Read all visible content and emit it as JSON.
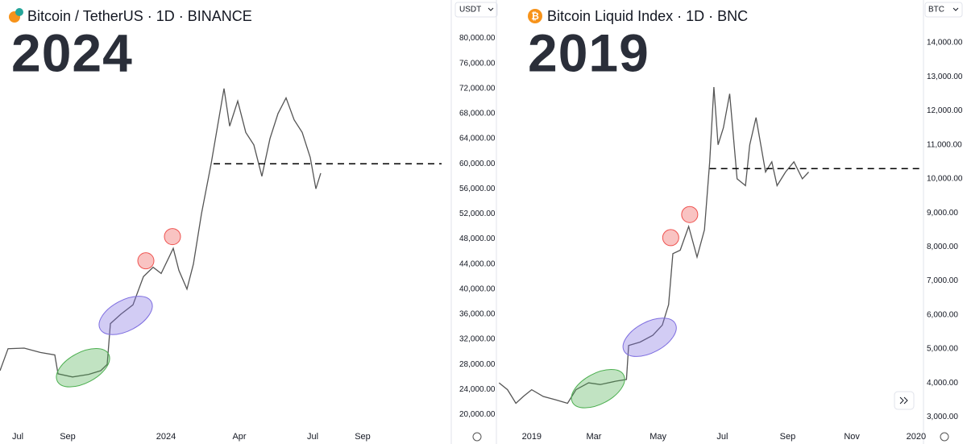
{
  "chart_data": [
    {
      "type": "line",
      "title": "Bitcoin / TetherUS · 1D · BINANCE",
      "annotation": "2024",
      "currency": "USDT",
      "color": "#555555",
      "grid": false,
      "x": [
        -22,
        -12,
        8,
        28,
        46,
        50,
        68,
        88,
        103,
        111,
        115,
        128,
        143,
        156,
        168,
        178,
        193,
        200,
        210,
        218,
        228,
        240,
        248,
        256,
        263,
        273,
        283,
        293,
        303,
        313,
        323,
        333,
        343,
        353,
        363,
        370,
        376
      ],
      "values": [
        27000,
        30500,
        30600,
        29900,
        29500,
        26500,
        26000,
        26400,
        27000,
        28000,
        34500,
        36000,
        37500,
        42000,
        43500,
        42500,
        46500,
        43000,
        40000,
        44000,
        52000,
        60000,
        66000,
        72000,
        66000,
        70000,
        65000,
        63000,
        58000,
        64000,
        68000,
        70500,
        67000,
        65000,
        61000,
        56000,
        58500
      ],
      "xlim": [
        -22,
        526
      ],
      "ylim": [
        18000,
        82000
      ],
      "xticks": [
        {
          "value": 0,
          "label": "Jul"
        },
        {
          "value": 62,
          "label": "Sep"
        },
        {
          "value": 184,
          "label": "2024"
        },
        {
          "value": 275,
          "label": "Apr"
        },
        {
          "value": 366,
          "label": "Jul"
        },
        {
          "value": 428,
          "label": "Sep"
        }
      ],
      "yticks": [
        {
          "value": 20000,
          "label": "20,000.00"
        },
        {
          "value": 24000,
          "label": "24,000.00"
        },
        {
          "value": 28000,
          "label": "28,000.00"
        },
        {
          "value": 32000,
          "label": "32,000.00"
        },
        {
          "value": 36000,
          "label": "36,000.00"
        },
        {
          "value": 40000,
          "label": "40,000.00"
        },
        {
          "value": 44000,
          "label": "44,000.00"
        },
        {
          "value": 48000,
          "label": "48,000.00"
        },
        {
          "value": 52000,
          "label": "52,000.00"
        },
        {
          "value": 56000,
          "label": "56,000.00"
        },
        {
          "value": 60000,
          "label": "60,000.00"
        },
        {
          "value": 64000,
          "label": "64,000.00"
        },
        {
          "value": 68000,
          "label": "68,000.00"
        },
        {
          "value": 72000,
          "label": "72,000.00"
        },
        {
          "value": 76000,
          "label": "76,000.00"
        },
        {
          "value": 80000,
          "label": "80,000.00"
        }
      ],
      "level": {
        "value": 60000,
        "x_start": 243
      },
      "highlights": [
        {
          "shape": "ellipse",
          "x": 81,
          "y": 27470,
          "color": "#4caf50"
        },
        {
          "shape": "ellipse",
          "x": 134,
          "y": 35810,
          "color": "#7e6ee0"
        },
        {
          "shape": "circle",
          "x": 159,
          "y": 44520,
          "color": "#ef5350"
        },
        {
          "shape": "circle",
          "x": 192,
          "y": 48380,
          "color": "#ef5350"
        }
      ]
    },
    {
      "type": "line",
      "title": "Bitcoin Liquid Index · 1D · BNC",
      "annotation": "2019",
      "currency": "BTC",
      "color": "#555555",
      "grid": false,
      "x": [
        -31,
        -23,
        -15,
        -8,
        0,
        11,
        23,
        34,
        42,
        54,
        65,
        80,
        90,
        92,
        103,
        115,
        124,
        130,
        134,
        141,
        149,
        157,
        164,
        169,
        173,
        177,
        182,
        188,
        195,
        203,
        207,
        213,
        222,
        228,
        233,
        241,
        249,
        257,
        263
      ],
      "values": [
        4000,
        3800,
        3400,
        3600,
        3800,
        3600,
        3500,
        3400,
        3800,
        4000,
        3950,
        4050,
        4100,
        5100,
        5200,
        5400,
        5700,
        6300,
        7800,
        7900,
        8600,
        7700,
        8500,
        10500,
        12700,
        11000,
        11500,
        12500,
        10000,
        9800,
        11000,
        11800,
        10200,
        10500,
        9800,
        10200,
        10500,
        10000,
        10200
      ],
      "xlim": [
        -32,
        372
      ],
      "ylim": [
        2700,
        14500
      ],
      "xticks": [
        {
          "value": 0,
          "label": "2019"
        },
        {
          "value": 59,
          "label": "Mar"
        },
        {
          "value": 120,
          "label": "May"
        },
        {
          "value": 181,
          "label": "Jul"
        },
        {
          "value": 243,
          "label": "Sep"
        },
        {
          "value": 304,
          "label": "Nov"
        },
        {
          "value": 365,
          "label": "2020"
        }
      ],
      "yticks": [
        {
          "value": 3000,
          "label": "3,000.00"
        },
        {
          "value": 4000,
          "label": "4,000.00"
        },
        {
          "value": 5000,
          "label": "5,000.00"
        },
        {
          "value": 6000,
          "label": "6,000.00"
        },
        {
          "value": 7000,
          "label": "7,000.00"
        },
        {
          "value": 8000,
          "label": "8,000.00"
        },
        {
          "value": 9000,
          "label": "9,000.00"
        },
        {
          "value": 10000,
          "label": "10,000.00"
        },
        {
          "value": 11000,
          "label": "11,000.00"
        },
        {
          "value": 12000,
          "label": "12,000.00"
        },
        {
          "value": 13000,
          "label": "13,000.00"
        },
        {
          "value": 14000,
          "label": "14,000.00"
        }
      ],
      "level": {
        "value": 10300,
        "x_start": 169
      },
      "highlights": [
        {
          "shape": "ellipse",
          "x": 63,
          "y": 3830,
          "color": "#4caf50"
        },
        {
          "shape": "ellipse",
          "x": 112,
          "y": 5340,
          "color": "#7e6ee0"
        },
        {
          "shape": "circle",
          "x": 132,
          "y": 8270,
          "color": "#ef5350"
        },
        {
          "shape": "circle",
          "x": 150,
          "y": 8950,
          "color": "#ef5350"
        }
      ]
    }
  ]
}
